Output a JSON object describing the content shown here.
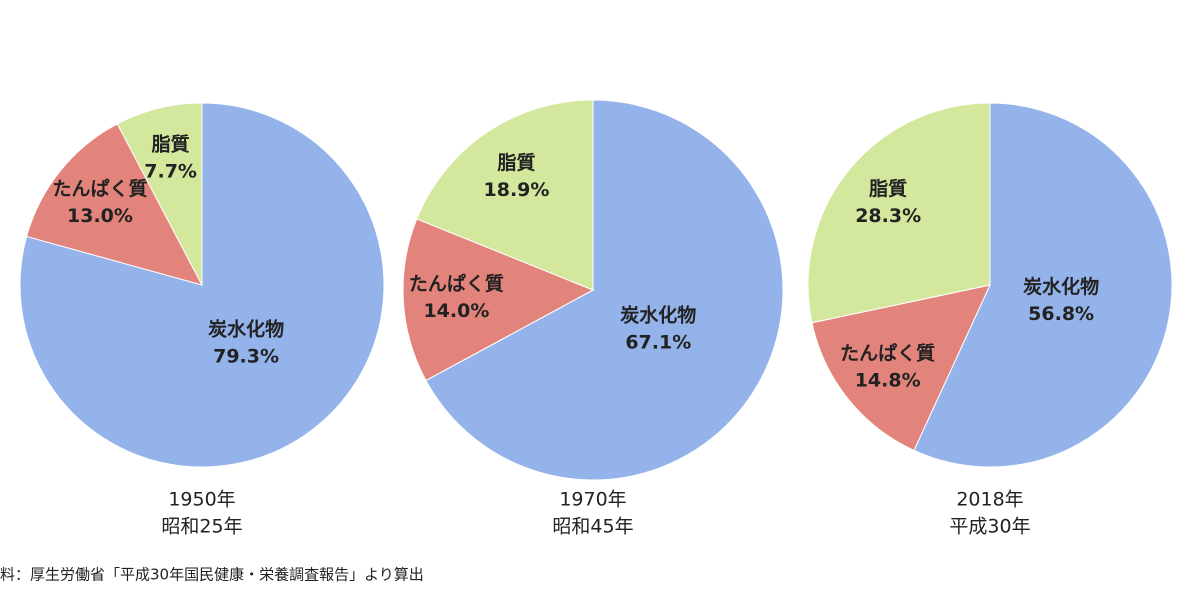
{
  "chart_data": [
    {
      "type": "pie",
      "title": "1950年",
      "subtitle": "昭和25年",
      "categories": [
        "炭水化物",
        "たんぱく質",
        "脂質"
      ],
      "values": [
        79.3,
        13.0,
        7.7
      ],
      "value_labels": [
        "79.3%",
        "13.0%",
        "7.7%"
      ],
      "colors": [
        "#94b3ea",
        "#e3847c",
        "#d3e79d"
      ]
    },
    {
      "type": "pie",
      "title": "1970年",
      "subtitle": "昭和45年",
      "categories": [
        "炭水化物",
        "たんぱく質",
        "脂質"
      ],
      "values": [
        67.1,
        14.0,
        18.9
      ],
      "value_labels": [
        "67.1%",
        "14.0%",
        "18.9%"
      ],
      "colors": [
        "#94b3ea",
        "#e3847c",
        "#d3e79d"
      ]
    },
    {
      "type": "pie",
      "title": "2018年",
      "subtitle": "平成30年",
      "categories": [
        "炭水化物",
        "たんぱく質",
        "脂質"
      ],
      "values": [
        56.8,
        14.8,
        28.3
      ],
      "value_labels": [
        "56.8%",
        "14.8%",
        "28.3%"
      ],
      "colors": [
        "#94b3ea",
        "#e3847c",
        "#d3e79d"
      ]
    }
  ],
  "source": "料：厚生労働省「平成30年国民健康・栄養調査報告」より算出"
}
